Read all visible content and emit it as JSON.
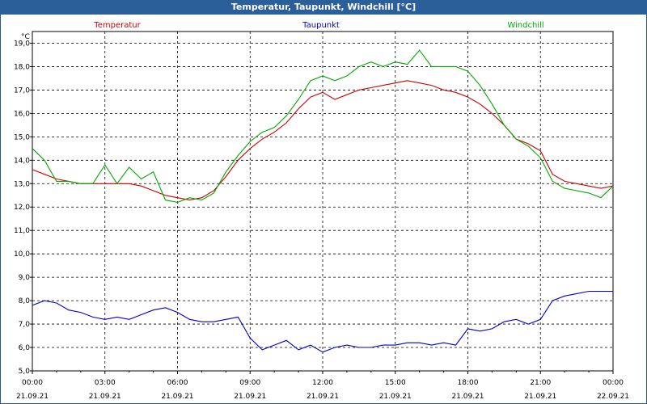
{
  "window": {
    "title": "Temperatur, Taupunkt, Windchill [°C]"
  },
  "chart_data": {
    "type": "line",
    "title": "Temperatur, Taupunkt, Windchill [°C]",
    "ylabel": "°C",
    "ylim": [
      5.0,
      19.5
    ],
    "xlim": [
      0,
      24
    ],
    "grid": true,
    "legend_placement": "top",
    "y_ticks": [
      "5,0",
      "6,0",
      "7,0",
      "8,0",
      "9,0",
      "10,0",
      "11,0",
      "12,0",
      "13,0",
      "14,0",
      "15,0",
      "16,0",
      "17,0",
      "18,0",
      "19,0"
    ],
    "x_ticks": [
      {
        "time": "00:00",
        "date": "21.09.21"
      },
      {
        "time": "03:00",
        "date": "21.09.21"
      },
      {
        "time": "06:00",
        "date": "21.09.21"
      },
      {
        "time": "09:00",
        "date": "21.09.21"
      },
      {
        "time": "12:00",
        "date": "21.09.21"
      },
      {
        "time": "15:00",
        "date": "21.09.21"
      },
      {
        "time": "18:00",
        "date": "21.09.21"
      },
      {
        "time": "21:00",
        "date": "21.09.21"
      },
      {
        "time": "00:00",
        "date": "22.09.21"
      }
    ],
    "x_hours": [
      0,
      0.5,
      1,
      1.5,
      2,
      2.5,
      3,
      3.5,
      4,
      4.5,
      5,
      5.5,
      6,
      6.5,
      7,
      7.5,
      8,
      8.5,
      9,
      9.5,
      10,
      10.5,
      11,
      11.5,
      12,
      12.5,
      13,
      13.5,
      14,
      14.5,
      15,
      15.5,
      16,
      16.5,
      17,
      17.5,
      18,
      18.5,
      19,
      19.5,
      20,
      20.5,
      21,
      21.5,
      22,
      22.5,
      23,
      23.5,
      24
    ],
    "series": [
      {
        "name": "Temperatur",
        "color": "#cc0000",
        "values": [
          13.6,
          13.4,
          13.2,
          13.1,
          13.0,
          13.0,
          13.0,
          13.0,
          13.0,
          12.9,
          12.7,
          12.5,
          12.4,
          12.3,
          12.4,
          12.7,
          13.3,
          14.0,
          14.5,
          14.9,
          15.2,
          15.6,
          16.2,
          16.7,
          16.9,
          16.6,
          16.8,
          17.0,
          17.1,
          17.2,
          17.3,
          17.4,
          17.3,
          17.2,
          17.0,
          16.9,
          16.7,
          16.4,
          16.0,
          15.5,
          14.9,
          14.7,
          14.4,
          13.4,
          13.1,
          13.0,
          12.9,
          12.8,
          12.9
        ]
      },
      {
        "name": "Taupunkt",
        "color": "#0000cc",
        "values": [
          7.8,
          8.0,
          7.9,
          7.6,
          7.5,
          7.3,
          7.2,
          7.3,
          7.2,
          7.4,
          7.6,
          7.7,
          7.5,
          7.2,
          7.1,
          7.1,
          7.2,
          7.3,
          6.4,
          5.9,
          6.1,
          6.3,
          5.9,
          6.1,
          5.8,
          6.0,
          6.1,
          6.0,
          6.0,
          6.1,
          6.1,
          6.2,
          6.2,
          6.1,
          6.2,
          6.1,
          6.8,
          6.7,
          6.8,
          7.1,
          7.2,
          7.0,
          7.2,
          8.0,
          8.2,
          8.3,
          8.4,
          8.4,
          8.4
        ]
      },
      {
        "name": "Windchill",
        "color": "#00aa00",
        "values": [
          14.5,
          14.0,
          13.1,
          13.1,
          13.0,
          13.0,
          13.8,
          13.0,
          13.7,
          13.2,
          13.5,
          12.3,
          12.2,
          12.4,
          12.3,
          12.6,
          13.5,
          14.2,
          14.8,
          15.2,
          15.4,
          15.9,
          16.6,
          17.4,
          17.6,
          17.4,
          17.6,
          18.0,
          18.2,
          18.0,
          18.2,
          18.1,
          18.7,
          18.0,
          18.0,
          18.0,
          17.8,
          17.2,
          16.4,
          15.5,
          14.9,
          14.6,
          14.1,
          13.1,
          12.8,
          12.7,
          12.6,
          12.4,
          12.9
        ]
      }
    ]
  }
}
